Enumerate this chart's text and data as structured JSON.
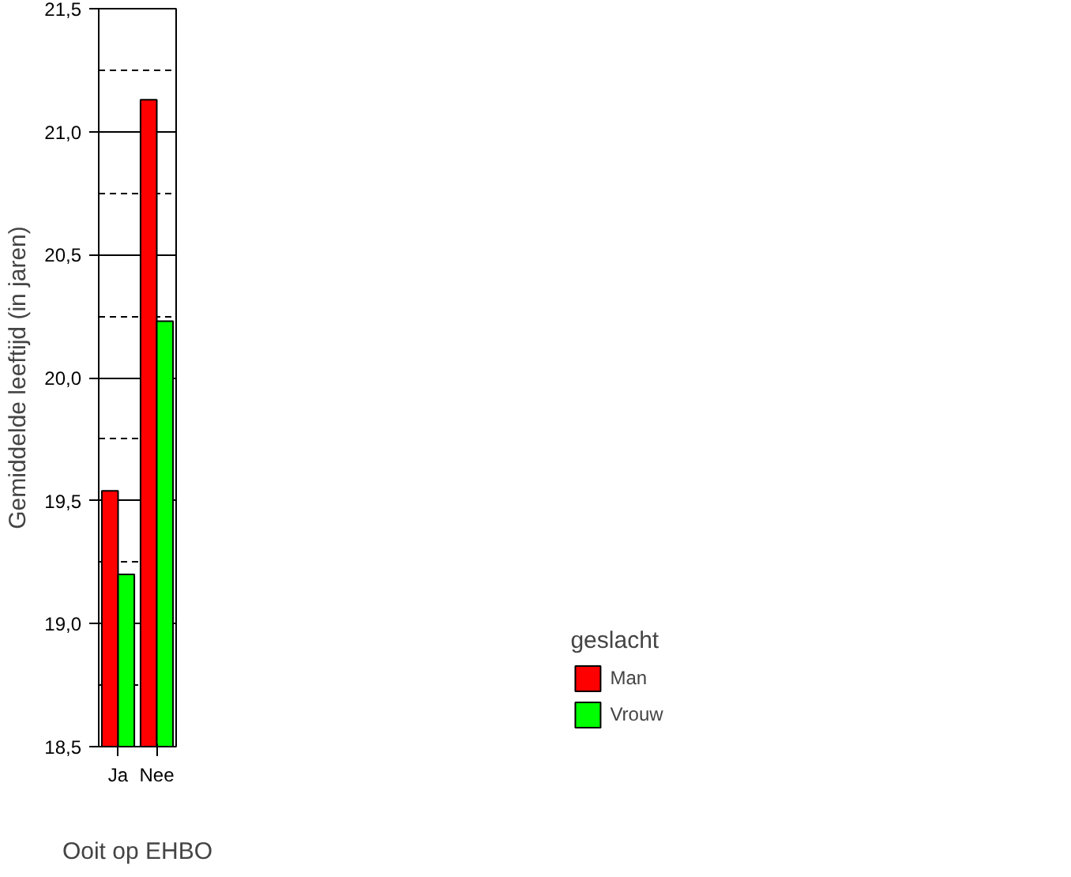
{
  "chart_data": {
    "type": "bar",
    "categories": [
      "Ja",
      "Nee"
    ],
    "xlabel": "Ooit op EHBO",
    "ylabel": "Gemiddelde leeftijd (in jaren)",
    "legend_title": "geslacht",
    "legend": "right",
    "grid": "y",
    "ylim": [
      18.5,
      21.5
    ],
    "yticks": [
      {
        "value": 18.5,
        "label": "18,5"
      },
      {
        "value": 19.0,
        "label": "19,0"
      },
      {
        "value": 19.5,
        "label": "19,5"
      },
      {
        "value": 20.0,
        "label": "20,0"
      },
      {
        "value": 20.5,
        "label": "20,5"
      },
      {
        "value": 21.0,
        "label": "21,0"
      },
      {
        "value": 21.5,
        "label": "21,5"
      }
    ],
    "series": [
      {
        "name": "Man",
        "color": "#ff0000",
        "values": [
          19.54,
          21.13
        ]
      },
      {
        "name": "Vrouw",
        "color": "#00ff00",
        "values": [
          19.2,
          20.23
        ]
      }
    ]
  }
}
